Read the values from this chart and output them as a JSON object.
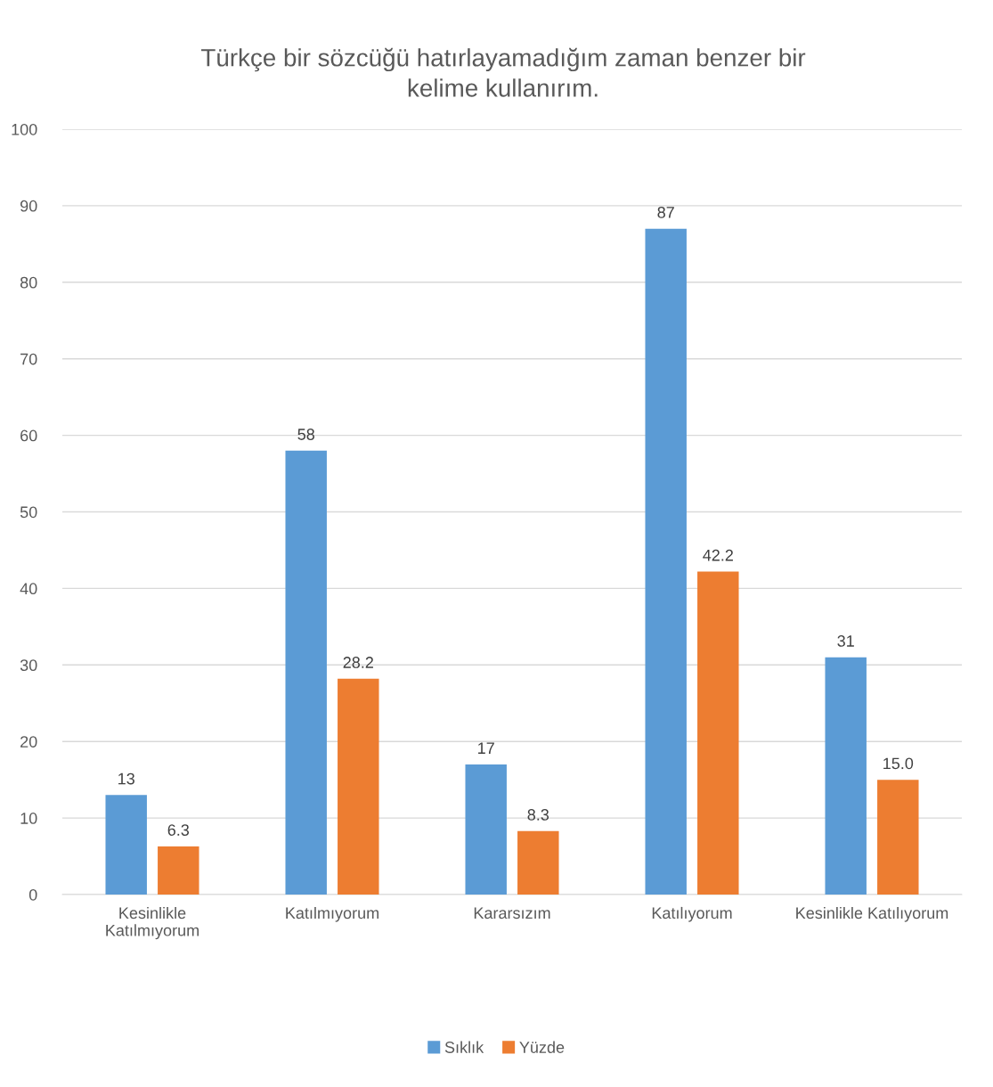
{
  "chart_data": {
    "type": "bar",
    "title": "Türkçe bir sözcüğü hatırlayamadığım zaman benzer bir\nkelime kullanırım.",
    "categories": [
      "Kesinlikle\nKatılmıyorum",
      "Katılmıyorum",
      "Kararsızım",
      "Katılıyorum",
      "Kesinlikle Katılıyorum"
    ],
    "series": [
      {
        "name": "Sıklık",
        "color": "#5b9bd5",
        "values": [
          13,
          58,
          17,
          87,
          31
        ],
        "value_labels": [
          "13",
          "58",
          "17",
          "87",
          "31"
        ]
      },
      {
        "name": "Yüzde",
        "color": "#ed7d31",
        "values": [
          6.3,
          28.2,
          8.3,
          42.2,
          15.0
        ],
        "value_labels": [
          "6.3",
          "28.2",
          "8.3",
          "42.2",
          "15.0"
        ]
      }
    ],
    "ylim": [
      0,
      100
    ],
    "yticks": [
      0,
      10,
      20,
      30,
      40,
      50,
      60,
      70,
      80,
      90,
      100
    ],
    "grid": "y",
    "legend": "bottom"
  }
}
